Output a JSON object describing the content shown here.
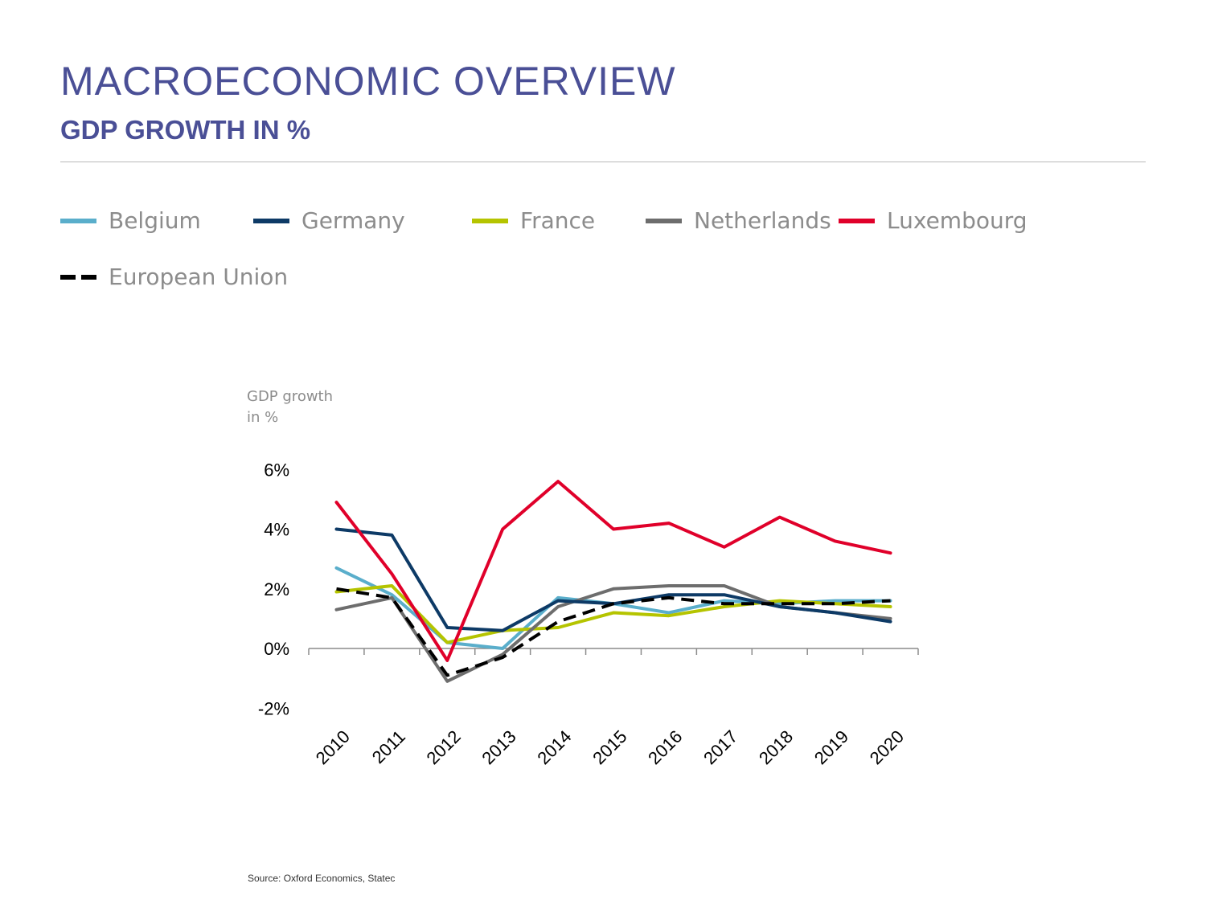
{
  "header": {
    "title": "MACROECONOMIC OVERVIEW",
    "subtitle": "GDP GROWTH IN %"
  },
  "legend": [
    {
      "label": "Belgium",
      "color": "#5aaecb",
      "style": "solid"
    },
    {
      "label": "Germany",
      "color": "#0d3a66",
      "style": "solid"
    },
    {
      "label": "France",
      "color": "#b5c400",
      "style": "solid"
    },
    {
      "label": "Netherlands",
      "color": "#6d6d6d",
      "style": "solid"
    },
    {
      "label": "Luxembourg",
      "color": "#e0002a",
      "style": "solid"
    },
    {
      "label": "European Union",
      "color": "#000000",
      "style": "dashed"
    }
  ],
  "chart_data": {
    "type": "line",
    "ylabel_line1": "GDP growth",
    "ylabel_line2": "in %",
    "ylim": [
      -2,
      6
    ],
    "yticks": [
      "6%",
      "4%",
      "2%",
      "0%",
      "-2%"
    ],
    "ytick_values": [
      6,
      4,
      2,
      0,
      -2
    ],
    "x": [
      "2010",
      "2011",
      "2012",
      "2013",
      "2014",
      "2015",
      "2016",
      "2017",
      "2018",
      "2019",
      "2020"
    ],
    "series": [
      {
        "name": "Belgium",
        "color": "#5aaecb",
        "dashed": false,
        "values": [
          2.7,
          1.8,
          0.2,
          0.0,
          1.7,
          1.5,
          1.2,
          1.6,
          1.5,
          1.6,
          1.6
        ]
      },
      {
        "name": "France",
        "color": "#b5c400",
        "dashed": false,
        "values": [
          1.9,
          2.1,
          0.2,
          0.6,
          0.7,
          1.2,
          1.1,
          1.4,
          1.6,
          1.5,
          1.4
        ]
      },
      {
        "name": "Netherlands",
        "color": "#6d6d6d",
        "dashed": false,
        "values": [
          1.3,
          1.7,
          -1.1,
          -0.2,
          1.4,
          2.0,
          2.1,
          2.1,
          1.4,
          1.2,
          1.0
        ]
      },
      {
        "name": "Germany",
        "color": "#0d3a66",
        "dashed": false,
        "values": [
          4.0,
          3.8,
          0.7,
          0.6,
          1.6,
          1.5,
          1.8,
          1.8,
          1.4,
          1.2,
          0.9
        ]
      },
      {
        "name": "European Union",
        "color": "#000000",
        "dashed": true,
        "values": [
          2.0,
          1.7,
          -0.9,
          -0.3,
          0.9,
          1.5,
          1.7,
          1.5,
          1.5,
          1.5,
          1.6
        ]
      },
      {
        "name": "Luxembourg",
        "color": "#e0002a",
        "dashed": false,
        "values": [
          4.9,
          2.5,
          -0.4,
          4.0,
          5.6,
          4.0,
          4.2,
          3.4,
          4.4,
          3.6,
          3.2
        ]
      }
    ],
    "source": "Source: Oxford Economics, Statec"
  }
}
